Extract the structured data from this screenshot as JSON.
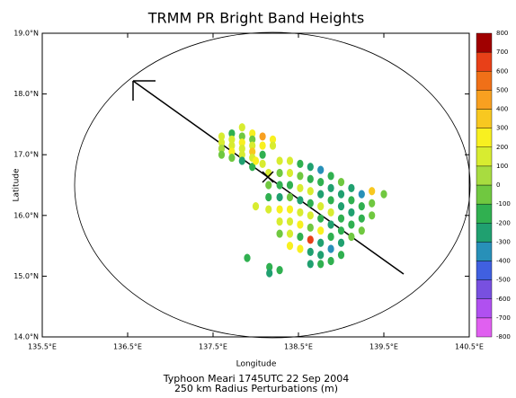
{
  "chart_data": {
    "type": "scatter",
    "title": "TRMM PR Bright Band Heights",
    "caption": [
      "Typhoon Meari 1745UTC 22 Sep 2004",
      "250 km Radius Perturbations (m)"
    ],
    "xlabel": "Longitude",
    "ylabel": "Latitude",
    "xlim": [
      135.5,
      140.5
    ],
    "ylim": [
      14,
      19
    ],
    "xticks": [
      {
        "value": 135.5,
        "label": "135.5°E"
      },
      {
        "value": 136.5,
        "label": "136.5°E"
      },
      {
        "value": 137.5,
        "label": "137.5°E"
      },
      {
        "value": 138.5,
        "label": "138.5°E"
      },
      {
        "value": 139.5,
        "label": "139.5°E"
      },
      {
        "value": 140.5,
        "label": "140.5°E"
      }
    ],
    "yticks": [
      {
        "value": 14,
        "label": "14.0°N"
      },
      {
        "value": 15,
        "label": "15.0°N"
      },
      {
        "value": 16,
        "label": "16.0°N"
      },
      {
        "value": 17,
        "label": "17.0°N"
      },
      {
        "value": 18,
        "label": "18.0°N"
      },
      {
        "value": 19,
        "label": "19.0°N"
      }
    ],
    "series": [
      {
        "x": [
          137.6,
          137.6,
          137.6,
          137.6,
          137.72,
          137.72,
          137.72,
          137.72,
          137.72,
          137.84,
          137.84,
          137.84,
          137.84,
          137.84,
          137.84,
          137.96,
          137.96,
          137.96,
          137.96,
          137.96,
          137.96,
          138.08,
          138.08,
          138.08,
          138.08,
          138.2,
          138.2,
          138.15,
          138.15,
          138.15,
          138.15,
          138.28,
          138.28,
          138.28,
          138.28,
          138.28,
          138.28,
          138.28,
          138.4,
          138.4,
          138.4,
          138.4,
          138.4,
          138.4,
          138.4,
          138.4,
          138.52,
          138.52,
          138.52,
          138.52,
          138.52,
          138.52,
          138.52,
          138.52,
          138.64,
          138.64,
          138.64,
          138.64,
          138.64,
          138.64,
          138.64,
          138.64,
          138.64,
          138.76,
          138.76,
          138.76,
          138.76,
          138.76,
          138.76,
          138.76,
          138.76,
          138.76,
          138.88,
          138.88,
          138.88,
          138.88,
          138.88,
          138.88,
          138.88,
          138.88,
          139.0,
          139.0,
          139.0,
          139.0,
          139.0,
          139.0,
          139.0,
          139.12,
          139.12,
          139.12,
          139.12,
          139.12,
          139.24,
          139.24,
          139.24,
          139.24,
          139.36,
          139.36,
          139.36,
          139.5,
          138.0,
          138.0,
          137.9,
          138.16,
          138.16,
          138.28
        ],
        "y": [
          17.3,
          17.2,
          17.1,
          17.0,
          17.35,
          17.25,
          17.15,
          17.05,
          16.95,
          17.45,
          17.3,
          17.2,
          17.1,
          17.0,
          16.9,
          17.35,
          17.25,
          17.15,
          17.05,
          16.95,
          16.8,
          17.3,
          17.15,
          17.0,
          16.85,
          17.25,
          17.15,
          16.7,
          16.5,
          16.3,
          16.1,
          16.9,
          16.7,
          16.5,
          16.3,
          16.1,
          15.9,
          15.7,
          16.9,
          16.7,
          16.5,
          16.3,
          16.1,
          15.9,
          15.7,
          15.5,
          16.85,
          16.65,
          16.45,
          16.25,
          16.05,
          15.85,
          15.65,
          15.45,
          16.8,
          16.6,
          16.4,
          16.2,
          16.0,
          15.8,
          15.6,
          15.4,
          15.2,
          16.75,
          16.55,
          16.35,
          16.15,
          15.95,
          15.75,
          15.55,
          15.35,
          15.2,
          16.65,
          16.45,
          16.25,
          16.05,
          15.85,
          15.65,
          15.45,
          15.25,
          16.55,
          16.35,
          16.15,
          15.95,
          15.75,
          15.55,
          15.35,
          16.45,
          16.25,
          16.05,
          15.85,
          15.65,
          16.35,
          16.15,
          15.95,
          15.75,
          16.4,
          16.2,
          16.0,
          16.35,
          16.9,
          16.15,
          15.3,
          15.15,
          15.05,
          15.1
        ],
        "values": [
          150,
          100,
          50,
          -100,
          -200,
          150,
          100,
          200,
          -50,
          150,
          -50,
          200,
          100,
          150,
          -250,
          250,
          -100,
          150,
          300,
          100,
          -200,
          400,
          200,
          -150,
          100,
          200,
          150,
          150,
          -100,
          -150,
          100,
          100,
          -50,
          -200,
          -250,
          200,
          150,
          -100,
          150,
          100,
          -200,
          -100,
          200,
          100,
          150,
          200,
          -200,
          -100,
          150,
          -250,
          100,
          200,
          -150,
          250,
          -250,
          -150,
          100,
          -200,
          150,
          -100,
          600,
          -300,
          -250,
          -400,
          -200,
          -250,
          100,
          -150,
          200,
          -300,
          -250,
          -200,
          -150,
          -300,
          -200,
          150,
          -250,
          -150,
          -400,
          -200,
          -100,
          -250,
          -300,
          -200,
          -150,
          -250,
          -200,
          -300,
          -150,
          -250,
          -200,
          -100,
          -350,
          -200,
          -150,
          -100,
          300,
          -50,
          -100,
          -100,
          250,
          150,
          -150,
          -200,
          -250,
          -200
        ]
      }
    ],
    "colorbar": {
      "levels": [
        -800,
        -700,
        -600,
        -500,
        -400,
        -300,
        -200,
        -100,
        0,
        100,
        200,
        300,
        400,
        500,
        600,
        700,
        800
      ],
      "colors": [
        "#e060f0",
        "#b050f0",
        "#7850e0",
        "#4060e0",
        "#2890b8",
        "#20a070",
        "#30b050",
        "#70c840",
        "#a8dc40",
        "#d8ec30",
        "#f8f020",
        "#f8c820",
        "#f8a020",
        "#f07018",
        "#e84018",
        "#a00000"
      ]
    }
  }
}
